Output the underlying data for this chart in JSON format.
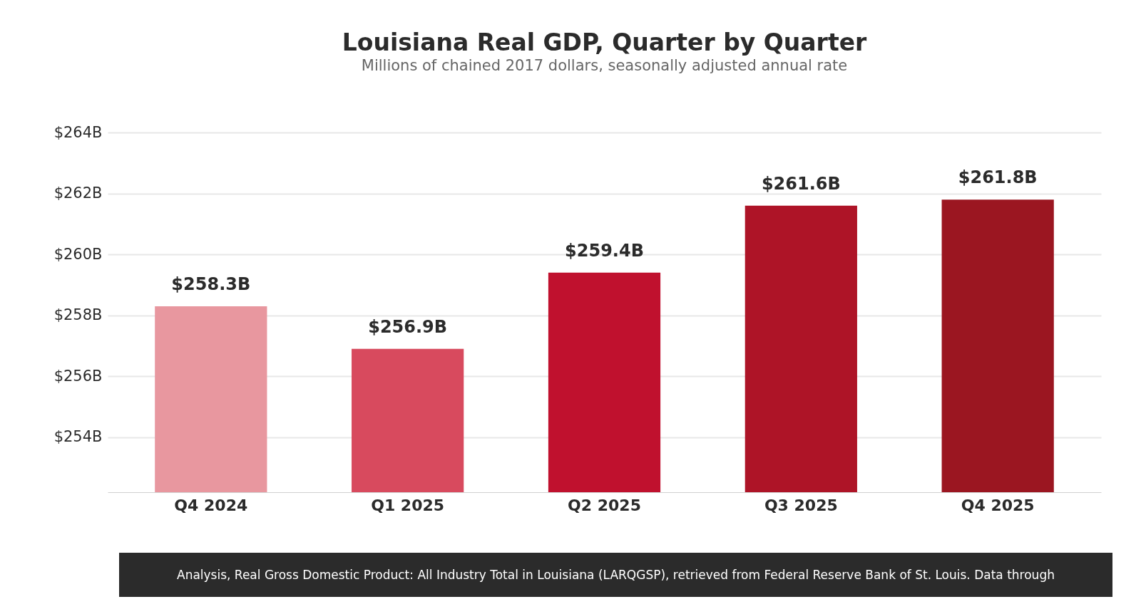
{
  "chart_data": {
    "type": "bar",
    "title": "Louisiana Real GDP, Quarter by Quarter",
    "subtitle": "Millions of chained 2017 dollars, seasonally adjusted annual rate",
    "categories": [
      "Q4 2024",
      "Q1 2025",
      "Q2 2025",
      "Q3 2025",
      "Q4 2025"
    ],
    "values": [
      258.3,
      256.9,
      259.4,
      261.6,
      261.8
    ],
    "value_labels": [
      "$258.3B",
      "$256.9B",
      "$259.4B",
      "$261.6B",
      "$261.8B"
    ],
    "colors": [
      "#e8979f",
      "#d84a5e",
      "#c0112e",
      "#ae1427",
      "#9b1621"
    ],
    "ylim": [
      252.2,
      264
    ],
    "yticks": [
      {
        "value": 254,
        "label": "$254B"
      },
      {
        "value": 256,
        "label": "$256B"
      },
      {
        "value": 258,
        "label": "$258B"
      },
      {
        "value": 260,
        "label": "$260B"
      },
      {
        "value": 262,
        "label": "$262B"
      },
      {
        "value": 264,
        "label": "$264B"
      }
    ],
    "grid": "y",
    "annotations": [
      "Analysis, Real Gross Domestic Product: All Industry Total in Louisiana (LARQGSP), retrieved from Federal Reserve Bank of St. Louis. Data through"
    ]
  }
}
